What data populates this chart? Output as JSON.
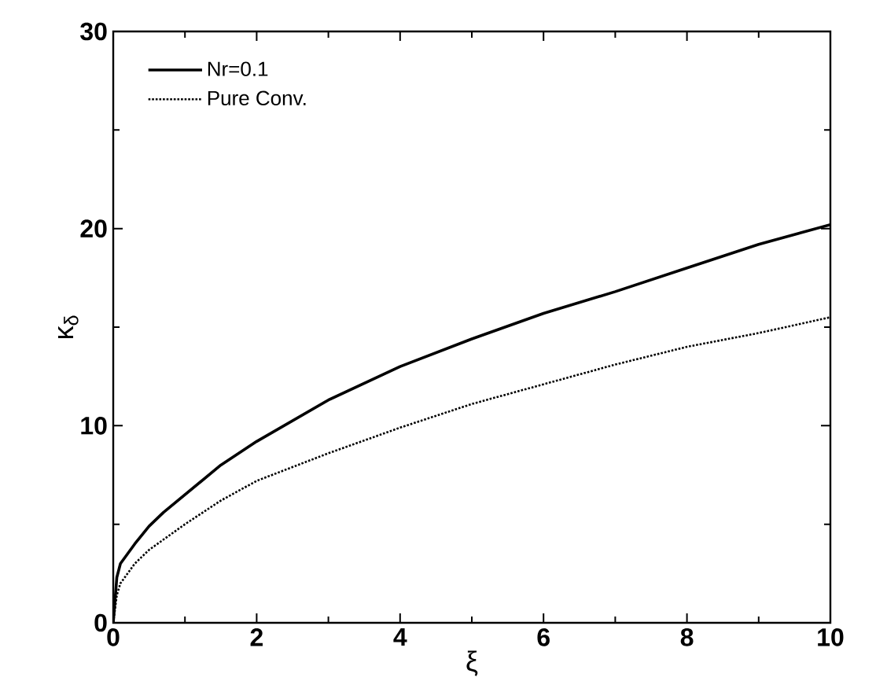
{
  "chart_data": {
    "type": "line",
    "xlabel": "ξ",
    "ylabel": "κ$_{δ}$",
    "xlim": [
      0,
      10
    ],
    "ylim": [
      0,
      30
    ],
    "xticks": [
      0,
      2,
      4,
      6,
      8,
      10
    ],
    "yticks": [
      0,
      10,
      20,
      30
    ],
    "grid": false,
    "legend": "top left",
    "marker": "none",
    "series": [
      {
        "name": "Nr=0.1",
        "color": "#000000",
        "line_style": "solid",
        "x": [
          0,
          0.05,
          0.1,
          0.3,
          0.5,
          0.7,
          1,
          1.5,
          2,
          3,
          4,
          5,
          6,
          7,
          8,
          9,
          10
        ],
        "values": [
          0,
          2.3,
          3,
          4,
          4.9,
          5.6,
          6.5,
          8,
          9.2,
          11.3,
          13,
          14.4,
          15.7,
          16.8,
          18,
          19.2,
          20.2
        ]
      },
      {
        "name": "Pure Conv.",
        "color": "#000000",
        "line_style": "dotted",
        "x": [
          0,
          0.05,
          0.1,
          0.3,
          0.5,
          1,
          1.5,
          2,
          3,
          4,
          5,
          6,
          7,
          8,
          9,
          10
        ],
        "values": [
          0,
          1.4,
          2,
          3,
          3.7,
          5,
          6.2,
          7.2,
          8.6,
          9.9,
          11.1,
          12.1,
          13.1,
          14,
          14.7,
          15.5
        ]
      }
    ]
  }
}
